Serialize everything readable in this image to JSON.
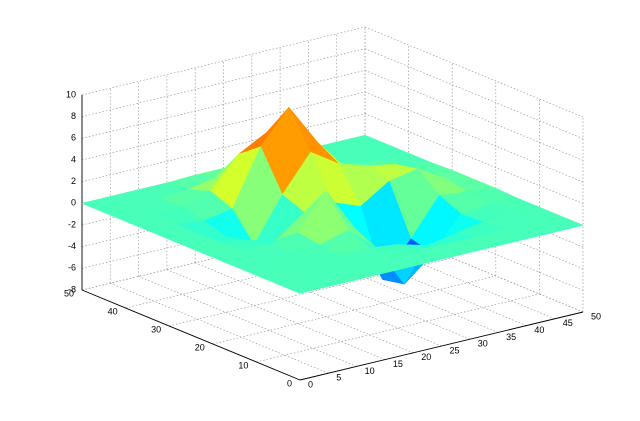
{
  "chart_data": {
    "type": "surface",
    "x": [
      0,
      5,
      10,
      15,
      20,
      25,
      30,
      35,
      40,
      45,
      50
    ],
    "y": [
      0,
      5,
      10,
      15,
      20,
      25,
      30,
      35,
      40,
      45,
      50
    ],
    "z": [
      [
        0,
        0,
        0,
        0,
        0,
        0,
        0,
        0,
        0,
        0,
        0
      ],
      [
        0,
        0,
        0,
        0,
        0,
        0,
        0,
        0,
        0,
        0,
        0
      ],
      [
        0,
        0,
        0,
        0,
        0,
        -0.3,
        -1.0,
        -0.6,
        -0.1,
        0,
        0
      ],
      [
        0,
        0,
        0,
        0.1,
        0.8,
        -1.4,
        -5.4,
        -3.2,
        -0.2,
        0.1,
        0
      ],
      [
        0,
        0,
        -0.1,
        0.4,
        3.6,
        -0.4,
        -5.8,
        -2.7,
        0.7,
        0.4,
        0.1
      ],
      [
        0,
        0,
        -0.5,
        -1.2,
        0.8,
        1.1,
        0.1,
        1.8,
        2.3,
        0.8,
        0.1
      ],
      [
        0,
        -0.1,
        -1.0,
        -2.4,
        1.6,
        4.9,
        3.2,
        2.4,
        1.9,
        0.6,
        0.1
      ],
      [
        0,
        0,
        -0.4,
        0.1,
        5.2,
        8.2,
        4.4,
        1.3,
        0.6,
        0.2,
        0
      ],
      [
        0,
        0,
        0.1,
        0.9,
        3.7,
        5.1,
        2.5,
        0.5,
        0.1,
        0,
        0
      ],
      [
        0,
        0,
        0,
        0.2,
        0.8,
        1.1,
        0.6,
        0.1,
        0,
        0,
        0
      ],
      [
        0,
        0,
        0,
        0,
        0.1,
        0.1,
        0.1,
        0,
        0,
        0,
        0
      ]
    ],
    "xlim": [
      0,
      50
    ],
    "ylim": [
      0,
      50
    ],
    "zlim": [
      -8,
      10
    ],
    "xticks": [
      0,
      5,
      10,
      15,
      20,
      25,
      30,
      35,
      40,
      45,
      50
    ],
    "yticks": [
      0,
      10,
      20,
      30,
      40,
      50
    ],
    "zticks": [
      -8,
      -6,
      -4,
      -2,
      0,
      2,
      4,
      6,
      8,
      10
    ],
    "grid": true,
    "colormap": "jet"
  }
}
